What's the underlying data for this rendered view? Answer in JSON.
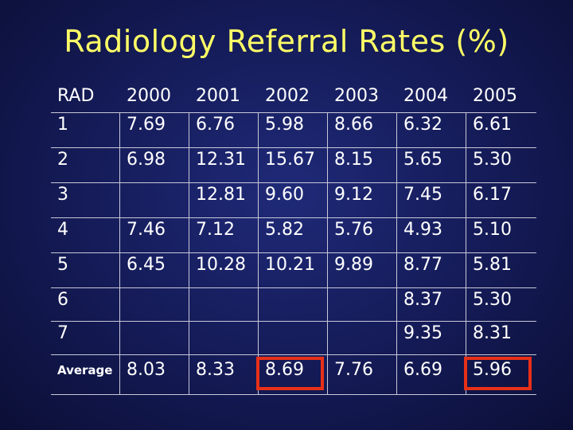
{
  "title": "Radiology Referral Rates (%)",
  "columns": [
    "RAD",
    "2000",
    "2001",
    "2002",
    "2003",
    "2004",
    "2005"
  ],
  "rows": [
    [
      "1",
      "7.69",
      "6.76",
      "5.98",
      "8.66",
      "6.32",
      "6.61"
    ],
    [
      "2",
      "6.98",
      "12.31",
      "15.67",
      "8.15",
      "5.65",
      "5.30"
    ],
    [
      "3",
      "",
      "12.81",
      "9.60",
      "9.12",
      "7.45",
      "6.17"
    ],
    [
      "4",
      "7.46",
      "7.12",
      "5.82",
      "5.76",
      "4.93",
      "5.10"
    ],
    [
      "5",
      "6.45",
      "10.28",
      "10.21",
      "9.89",
      "8.77",
      "5.81"
    ],
    [
      "6",
      "",
      "",
      "",
      "",
      "8.37",
      "5.30"
    ],
    [
      "7",
      "",
      "",
      "",
      "",
      "9.35",
      "8.31"
    ]
  ],
  "average": [
    "Average",
    "8.03",
    "8.33",
    "8.69",
    "7.76",
    "6.69",
    "5.96"
  ],
  "highlight_color": "#e83018",
  "highlighted_average_columns": [
    "2002",
    "2005"
  ]
}
